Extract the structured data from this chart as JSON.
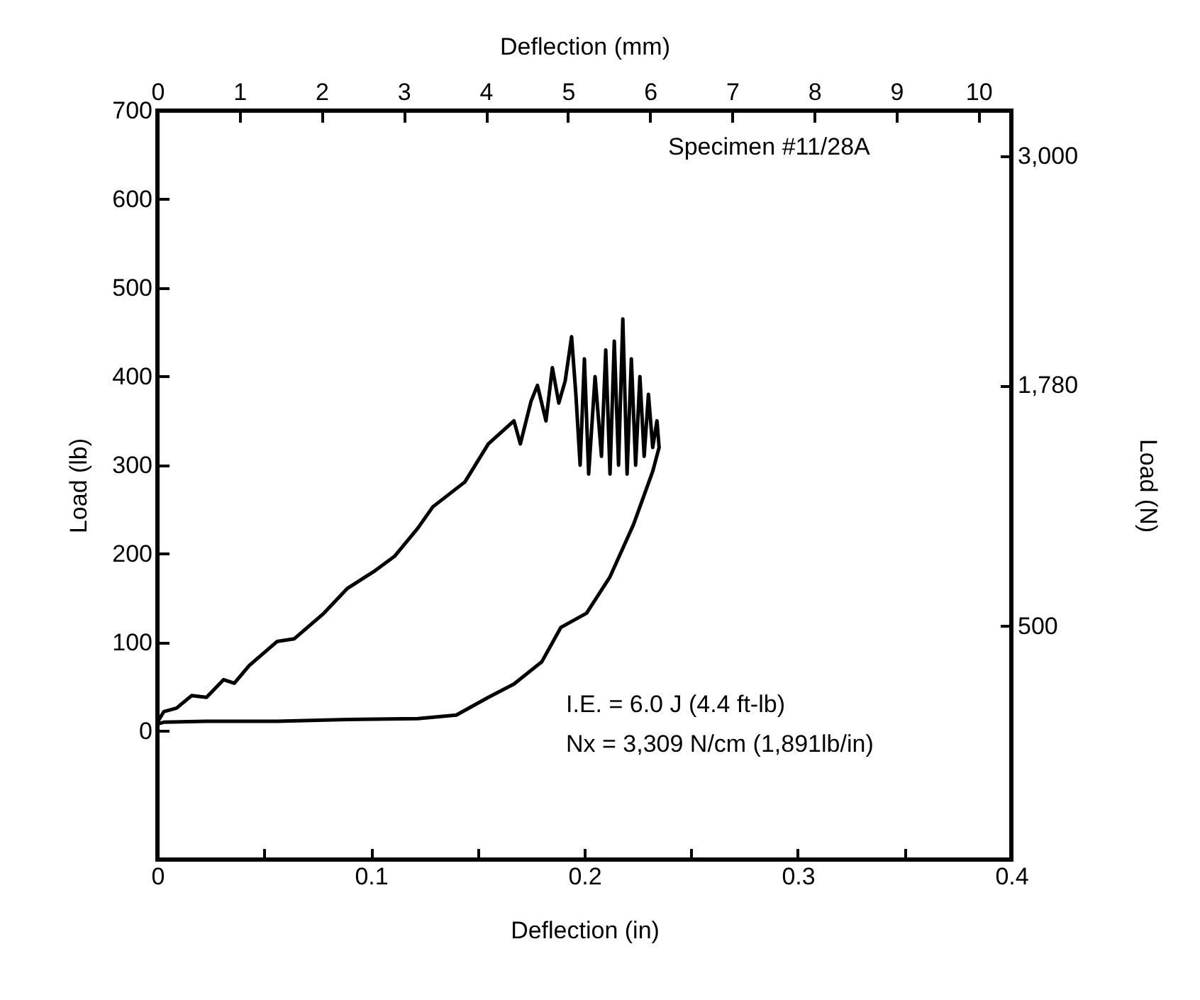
{
  "chart_data": {
    "type": "line",
    "xlabel": "Deflection (in)",
    "ylabel": "Load (lb)",
    "x2label": "Deflection (mm)",
    "y2label": "Load (N)",
    "xlim": [
      0,
      0.4
    ],
    "xticks": [
      0,
      {
        "value": 0.05,
        "label": null
      },
      0.1,
      {
        "value": 0.15,
        "label": null
      },
      0.2,
      {
        "value": 0.25,
        "label": null
      },
      0.3,
      {
        "value": 0.35,
        "label": null
      },
      0.4
    ],
    "ylim": [
      -145,
      700
    ],
    "yticks": [
      0,
      100,
      200,
      300,
      400,
      500,
      600,
      700
    ],
    "x2lim": [
      0,
      10.4
    ],
    "x2ticks": [
      0,
      1,
      2,
      3,
      4,
      5,
      6,
      7,
      8,
      9,
      10
    ],
    "y2lim": [
      -740,
      3240
    ],
    "y2ticks": [
      {
        "value": 500,
        "label": "500"
      },
      {
        "value": 1780,
        "label": "1,780"
      },
      {
        "value": 3000,
        "label": "3,000"
      }
    ],
    "grid": false,
    "line_style": "solid",
    "marker": "none",
    "annotations": [
      "Specimen #11/28A",
      "I.E. = 6.0 J (4.4 ft-lb)",
      "Nx = 3,309 N/cm (1,891lb/in)"
    ],
    "series": [
      {
        "color": "#000000",
        "x": [
          0,
          0.003,
          0.009,
          0.016,
          0.023,
          0.031,
          0.036,
          0.043,
          0.056,
          0.064,
          0.078,
          0.089,
          0.102,
          0.111,
          0.122,
          0.129,
          0.144,
          0.155,
          0.167,
          0.17,
          0.175,
          0.178,
          0.182,
          0.185,
          0.188,
          0.191,
          0.194,
          0.196,
          0.198,
          0.2,
          0.202,
          0.205,
          0.208,
          0.21,
          0.212,
          0.214,
          0.216,
          0.218,
          0.22,
          0.222,
          0.224,
          0.226,
          0.228,
          0.23,
          0.232,
          0.234,
          0.235,
          0.232,
          0.223,
          0.212,
          0.201,
          0.189,
          0.18,
          0.167,
          0.155,
          0.14,
          0.122,
          0.089,
          0.056,
          0.023,
          0.003,
          0
        ],
        "values": [
          10,
          22,
          26,
          40,
          38,
          58,
          54,
          74,
          101,
          104,
          133,
          161,
          181,
          197,
          229,
          253,
          281,
          324,
          350,
          324,
          372,
          390,
          350,
          410,
          370,
          395,
          445,
          380,
          300,
          420,
          290,
          400,
          310,
          430,
          290,
          440,
          300,
          465,
          290,
          420,
          300,
          400,
          310,
          380,
          320,
          350,
          320,
          293,
          233,
          174,
          133,
          117,
          78,
          53,
          38,
          18,
          14,
          13,
          11,
          11,
          10,
          8
        ]
      }
    ]
  }
}
